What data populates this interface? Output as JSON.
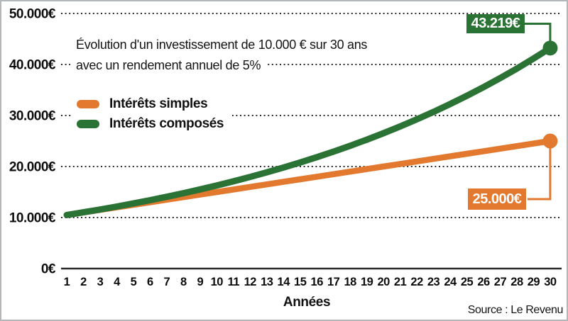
{
  "chart_data": {
    "type": "line",
    "title_line1": "Évolution d'un investissement de 10.000 € sur 30 ans",
    "title_line2": "avec un rendement annuel de 5%",
    "xlabel": "Années",
    "source": "Source : Le Revenu",
    "x": [
      1,
      2,
      3,
      4,
      5,
      6,
      7,
      8,
      9,
      10,
      11,
      12,
      13,
      14,
      15,
      16,
      17,
      18,
      19,
      20,
      21,
      22,
      23,
      24,
      25,
      26,
      27,
      28,
      29,
      30
    ],
    "series": [
      {
        "name": "Intérêts simples",
        "color": "#E2792F",
        "end_label": "25.000€",
        "values": [
          10500,
          11000,
          11500,
          12000,
          12500,
          13000,
          13500,
          14000,
          14500,
          15000,
          15500,
          16000,
          16500,
          17000,
          17500,
          18000,
          18500,
          19000,
          19500,
          20000,
          20500,
          21000,
          21500,
          22000,
          22500,
          23000,
          23500,
          24000,
          24500,
          25000
        ]
      },
      {
        "name": "Intérêts composés",
        "color": "#2B7334",
        "end_label": "43.219€",
        "values": [
          10500,
          11025,
          11576,
          12155,
          12763,
          13401,
          14071,
          14775,
          15513,
          16289,
          17103,
          17959,
          18856,
          19799,
          20789,
          21829,
          22920,
          24066,
          25270,
          26533,
          27860,
          29253,
          30715,
          32251,
          33864,
          35557,
          37335,
          39201,
          41161,
          43219
        ]
      }
    ],
    "y_ticks": [
      {
        "value": 0,
        "label": "0€"
      },
      {
        "value": 10000,
        "label": "10.000€"
      },
      {
        "value": 20000,
        "label": "20.000€"
      },
      {
        "value": 30000,
        "label": "30.000€"
      },
      {
        "value": 40000,
        "label": "40.000€"
      },
      {
        "value": 50000,
        "label": "50.000€"
      }
    ],
    "ylim": [
      0,
      50000
    ],
    "grid": "dotted-horizontal",
    "legend_position": "upper-left-inside"
  }
}
